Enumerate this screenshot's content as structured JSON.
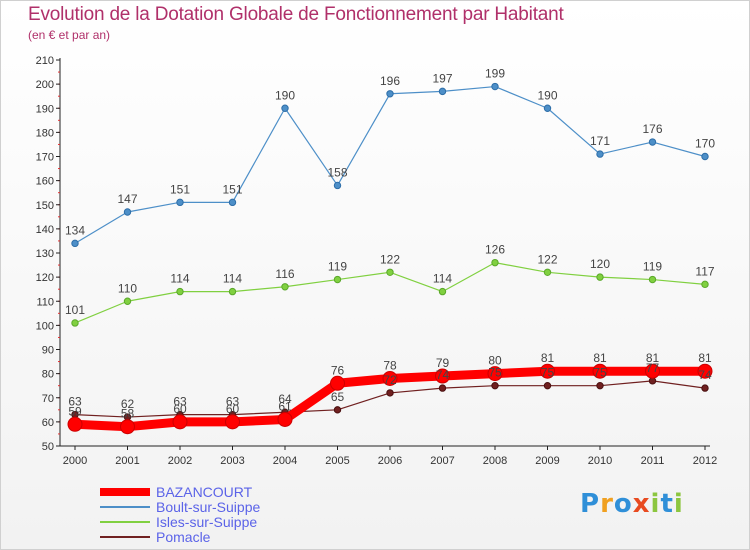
{
  "title": "Evolution de la Dotation Globale de Fonctionnement par Habitant",
  "subtitle": "(en € et par an)",
  "logo": {
    "text": "Proxiti",
    "letters": [
      {
        "ch": "P",
        "color": "#2f8fd8"
      },
      {
        "ch": "r",
        "color": "#f0a020"
      },
      {
        "ch": "o",
        "color": "#2f8fd8"
      },
      {
        "ch": "x",
        "color": "#e84a20"
      },
      {
        "ch": "i",
        "color": "#8cc63f"
      },
      {
        "ch": "t",
        "color": "#2f8fd8"
      },
      {
        "ch": "i",
        "color": "#8cc63f"
      }
    ]
  },
  "chart_data": {
    "type": "line",
    "title": "Evolution de la Dotation Globale de Fonctionnement par Habitant",
    "subtitle": "(en € et par an)",
    "x": [
      "2000",
      "2001",
      "2002",
      "2003",
      "2004",
      "2005",
      "2006",
      "2007",
      "2008",
      "2009",
      "2010",
      "2011",
      "2012"
    ],
    "ylim": [
      50,
      210
    ],
    "yticks": [
      50,
      60,
      70,
      80,
      90,
      100,
      110,
      120,
      130,
      140,
      150,
      160,
      170,
      180,
      190,
      200,
      210
    ],
    "grid": false,
    "legend_position": "bottom-left",
    "series": [
      {
        "name": "BAZANCOURT",
        "color": "#ff0000",
        "values": [
          59,
          58,
          60,
          60,
          61,
          76,
          78,
          79,
          80,
          81,
          81,
          81,
          81
        ]
      },
      {
        "name": "Boult-sur-Suippe",
        "color": "#4d8fc8",
        "values": [
          134,
          147,
          151,
          151,
          190,
          158,
          196,
          197,
          199,
          190,
          171,
          176,
          170
        ]
      },
      {
        "name": "Isles-sur-Suippe",
        "color": "#80d040",
        "values": [
          101,
          110,
          114,
          114,
          116,
          119,
          122,
          114,
          126,
          122,
          120,
          119,
          117
        ]
      },
      {
        "name": "Pomacle",
        "color": "#702020",
        "values": [
          63,
          62,
          63,
          63,
          64,
          65,
          72,
          74,
          75,
          75,
          75,
          77,
          74
        ]
      }
    ]
  }
}
